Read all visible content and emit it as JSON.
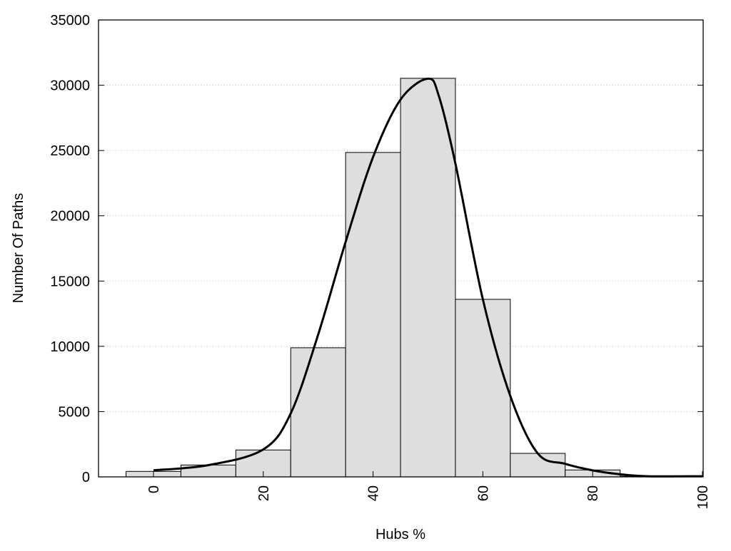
{
  "chart_data": {
    "type": "bar",
    "title": "",
    "xlabel": "Hubs %",
    "ylabel": "Number Of Paths",
    "xlim": [
      -10,
      100
    ],
    "ylim": [
      0,
      35000
    ],
    "grid": true,
    "bin_width": 10,
    "x": [
      0,
      10,
      20,
      30,
      40,
      50,
      60,
      70,
      80,
      90
    ],
    "values": [
      420,
      910,
      2060,
      9890,
      24850,
      30530,
      13600,
      1800,
      530,
      50
    ],
    "bar_color": "#dedede",
    "curve": {
      "x": [
        0,
        10,
        20,
        25,
        30,
        35,
        40,
        45,
        50,
        52,
        55,
        60,
        65,
        70,
        75,
        80,
        85,
        90,
        100
      ],
      "y": [
        500,
        900,
        2100,
        4860,
        10900,
        18000,
        24500,
        28900,
        30500,
        29150,
        24000,
        13600,
        6200,
        1800,
        1000,
        500,
        200,
        50,
        50
      ]
    },
    "xticks": [
      "0",
      "20",
      "40",
      "60",
      "80",
      "100"
    ],
    "yticks": [
      "0",
      "5000",
      "10000",
      "15000",
      "20000",
      "25000",
      "30000",
      "35000"
    ]
  }
}
